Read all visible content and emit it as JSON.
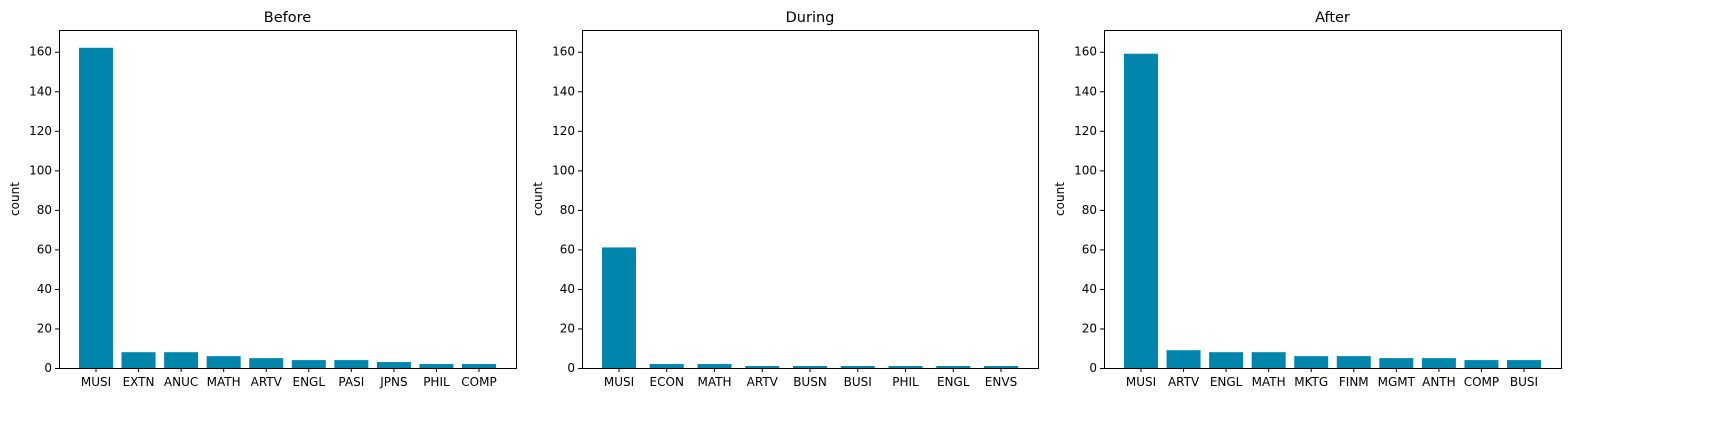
{
  "chart_data": [
    {
      "type": "bar",
      "title": "Before",
      "ylabel": "count",
      "xlabel": "",
      "ylim": [
        0,
        171
      ],
      "yticks": [
        0,
        20,
        40,
        60,
        80,
        100,
        120,
        140,
        160
      ],
      "categories": [
        "MUSI",
        "EXTN",
        "ANUC",
        "MATH",
        "ARTV",
        "ENGL",
        "PASI",
        "JPNS",
        "PHIL",
        "COMP"
      ],
      "values": [
        162,
        8,
        8,
        6,
        5,
        4,
        4,
        3,
        2,
        2
      ],
      "color": "#0086ad",
      "grid": false
    },
    {
      "type": "bar",
      "title": "During",
      "ylabel": "count",
      "xlabel": "",
      "ylim": [
        0,
        171
      ],
      "yticks": [
        0,
        20,
        40,
        60,
        80,
        100,
        120,
        140,
        160
      ],
      "categories": [
        "MUSI",
        "ECON",
        "MATH",
        "ARTV",
        "BUSN",
        "BUSI",
        "PHIL",
        "ENGL",
        "ENVS"
      ],
      "values": [
        61,
        2,
        2,
        1,
        1,
        1,
        1,
        1,
        1
      ],
      "color": "#0086ad",
      "grid": false
    },
    {
      "type": "bar",
      "title": "After",
      "ylabel": "count",
      "xlabel": "",
      "ylim": [
        0,
        171
      ],
      "yticks": [
        0,
        20,
        40,
        60,
        80,
        100,
        120,
        140,
        160
      ],
      "categories": [
        "MUSI",
        "ARTV",
        "ENGL",
        "MATH",
        "MKTG",
        "FINM",
        "MGMT",
        "ANTH",
        "COMP",
        "BUSI"
      ],
      "values": [
        159,
        9,
        8,
        8,
        6,
        6,
        5,
        5,
        4,
        4
      ],
      "color": "#0086ad",
      "grid": false
    }
  ]
}
